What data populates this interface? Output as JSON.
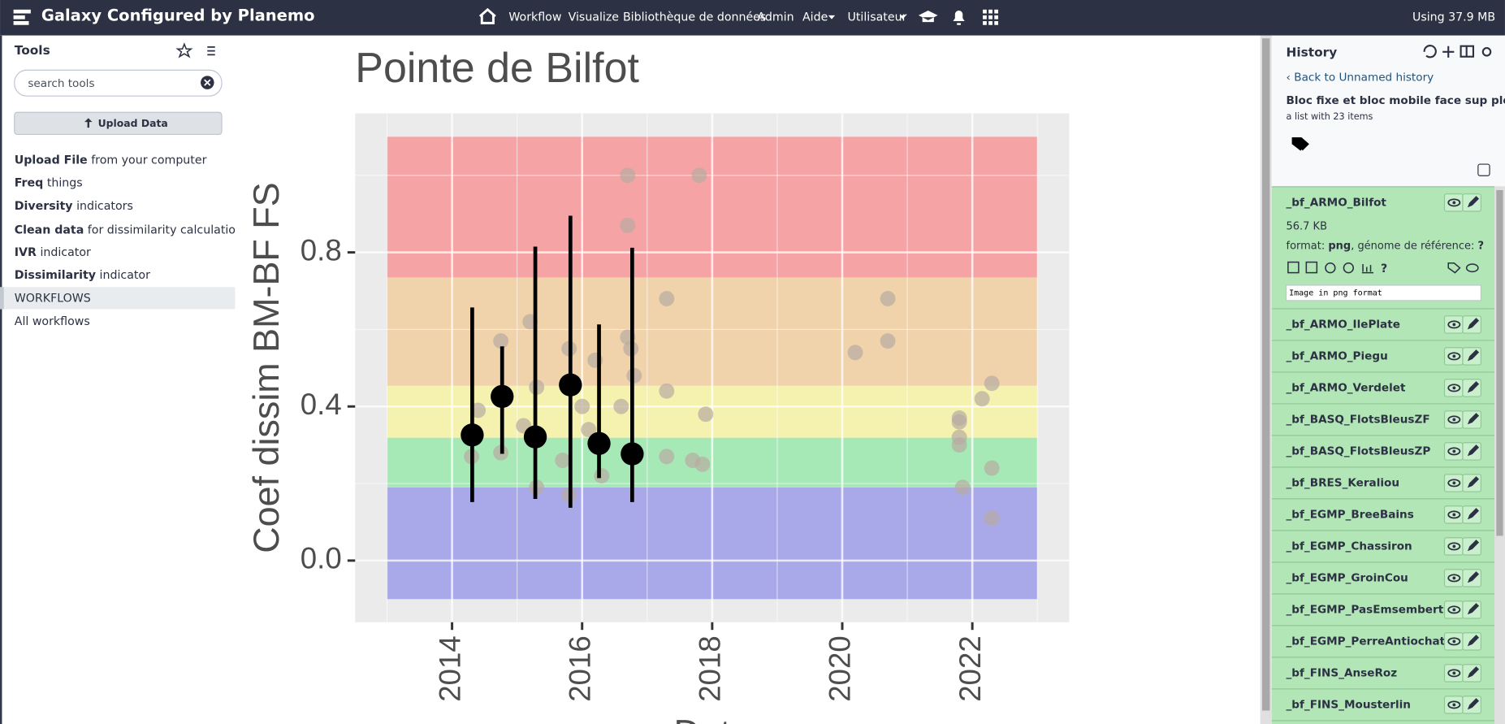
{
  "navbar": {
    "brand": "Galaxy Configured by Planemo",
    "items": [
      "Workflow",
      "Visualize",
      "Bibliothèque de données",
      "Admin",
      "Aide",
      "Utilisateur"
    ],
    "usage": "Using 37.9 MB"
  },
  "tools": {
    "title": "Tools",
    "search_placeholder": "search tools",
    "upload_button": "Upload Data",
    "list": [
      {
        "bold": "Upload File",
        "rest": "from your computer"
      },
      {
        "bold": "Freq",
        "rest": "things"
      },
      {
        "bold": "Diversity",
        "rest": "indicators"
      },
      {
        "bold": "Clean data",
        "rest": "for dissimilarity calculations"
      },
      {
        "bold": "IVR",
        "rest": "indicator"
      },
      {
        "bold": "Dissimilarity",
        "rest": "indicator"
      }
    ],
    "section": "WORKFLOWS",
    "all_workflows": "All workflows"
  },
  "chart_data": {
    "type": "scatter",
    "title": "Pointe de Bilfot",
    "y_label": "Coef dissim BM-BF FS",
    "x_label": "Date",
    "xlim": [
      2012.51,
      2023.49
    ],
    "ylim": [
      -0.16,
      1.161
    ],
    "xticks": [
      2014,
      2016,
      2018,
      2020,
      2022
    ],
    "yticks": [
      {
        "value": 0,
        "label": "0.0"
      },
      0.4,
      0.8
    ],
    "grid": true,
    "bands": {
      "x": [
        2013,
        2023
      ],
      "colors": [
        "#a9a9e9",
        "#a6e9b6",
        "#f5f2b0",
        "#f1d3ab",
        "#f5a3a5"
      ],
      "edges": [
        -0.1,
        0.19,
        0.319,
        0.454,
        0.735,
        1.1
      ]
    },
    "series": [
      {
        "name": "points",
        "color": "#b8aba3",
        "x": [
          2016.7,
          2017.8,
          2016.7,
          2017.3,
          2020.7,
          2020.7,
          2020.2,
          2017.3,
          2017.9,
          2017.3,
          2017.7,
          2017.85,
          2021.8,
          2021.8,
          2021.8,
          2021.8,
          2021.85,
          2022.15,
          2022.3,
          2022.3,
          2022.3,
          2015.3,
          2015.8,
          2016.3,
          2014.3,
          2014.75,
          2014.75,
          2015.2,
          2015.8,
          2016.2,
          2016.7,
          2016.75,
          2015.3,
          2016.0,
          2015.7,
          2016.6,
          2014.4,
          2015.1,
          2016.1,
          2016.8
        ],
        "values": [
          1.0,
          1.0,
          0.87,
          0.68,
          0.68,
          0.57,
          0.54,
          0.44,
          0.38,
          0.27,
          0.26,
          0.25,
          0.37,
          0.36,
          0.32,
          0.3,
          0.19,
          0.42,
          0.46,
          0.24,
          0.11,
          0.19,
          0.17,
          0.22,
          0.27,
          0.28,
          0.57,
          0.62,
          0.55,
          0.52,
          0.58,
          0.55,
          0.45,
          0.4,
          0.26,
          0.4,
          0.39,
          0.35,
          0.34,
          0.48
        ]
      },
      {
        "name": "means",
        "color": "#000000",
        "x": [
          2014.31,
          2014.77,
          2015.28,
          2015.82,
          2016.26,
          2016.77
        ],
        "values": [
          0.326,
          0.426,
          0.321,
          0.456,
          0.304,
          0.277
        ],
        "y_low": [
          0.152,
          0.277,
          0.16,
          0.137,
          0.214,
          0.152
        ],
        "y_high": [
          0.657,
          0.556,
          0.815,
          0.895,
          0.613,
          0.812
        ]
      }
    ]
  },
  "history": {
    "title": "History",
    "back": "Back to Unnamed history",
    "collection": "Bloc fixe et bloc mobile face sup plot",
    "subtitle": "a list with 23 items",
    "expanded": {
      "name": "_bf_ARMO_Bilfot",
      "size": "56.7 KB",
      "format": [
        "format: ",
        "png",
        ", génome de référence: ",
        "?"
      ],
      "peek": "Image in png format"
    },
    "items": [
      "_bf_ARMO_IlePlate",
      "_bf_ARMO_Piegu",
      "_bf_ARMO_Verdelet",
      "_bf_BASQ_FlotsBleusZF",
      "_bf_BASQ_FlotsBleusZP",
      "_bf_BRES_Keraliou",
      "_bf_EGMP_BreeBains",
      "_bf_EGMP_Chassiron",
      "_bf_EGMP_GroinCou",
      "_bf_EGMP_PasEmsembert",
      "_bf_EGMP_PerreAntiochat",
      "_bf_FINS_AnseRoz",
      "_bf_FINS_Mousterlin"
    ]
  }
}
